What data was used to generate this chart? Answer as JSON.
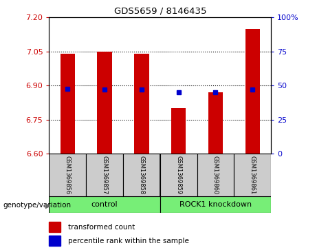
{
  "title": "GDS5659 / 8146435",
  "samples": [
    "GSM1369856",
    "GSM1369857",
    "GSM1369858",
    "GSM1369859",
    "GSM1369860",
    "GSM1369861"
  ],
  "red_bar_tops": [
    7.04,
    7.05,
    7.04,
    6.8,
    6.87,
    7.15
  ],
  "red_bar_bottom": 6.6,
  "blue_dot_y": [
    6.885,
    6.882,
    6.884,
    6.872,
    6.872,
    6.882
  ],
  "ylim": [
    6.6,
    7.2
  ],
  "yticks_left": [
    6.6,
    6.75,
    6.9,
    7.05,
    7.2
  ],
  "yticks_right": [
    0,
    25,
    50,
    75,
    100
  ],
  "ytick_right_labels": [
    "0",
    "25",
    "50",
    "75",
    "100%"
  ],
  "hlines": [
    7.05,
    6.9,
    6.75
  ],
  "group_label_prefix": "genotype/variation",
  "control_label": "control",
  "knockdown_label": "ROCK1 knockdown",
  "legend_red_label": "transformed count",
  "legend_blue_label": "percentile rank within the sample",
  "red_color": "#cc0000",
  "blue_color": "#0000cc",
  "bar_width": 0.4,
  "gray_color": "#cccccc",
  "green_color": "#77ee77"
}
